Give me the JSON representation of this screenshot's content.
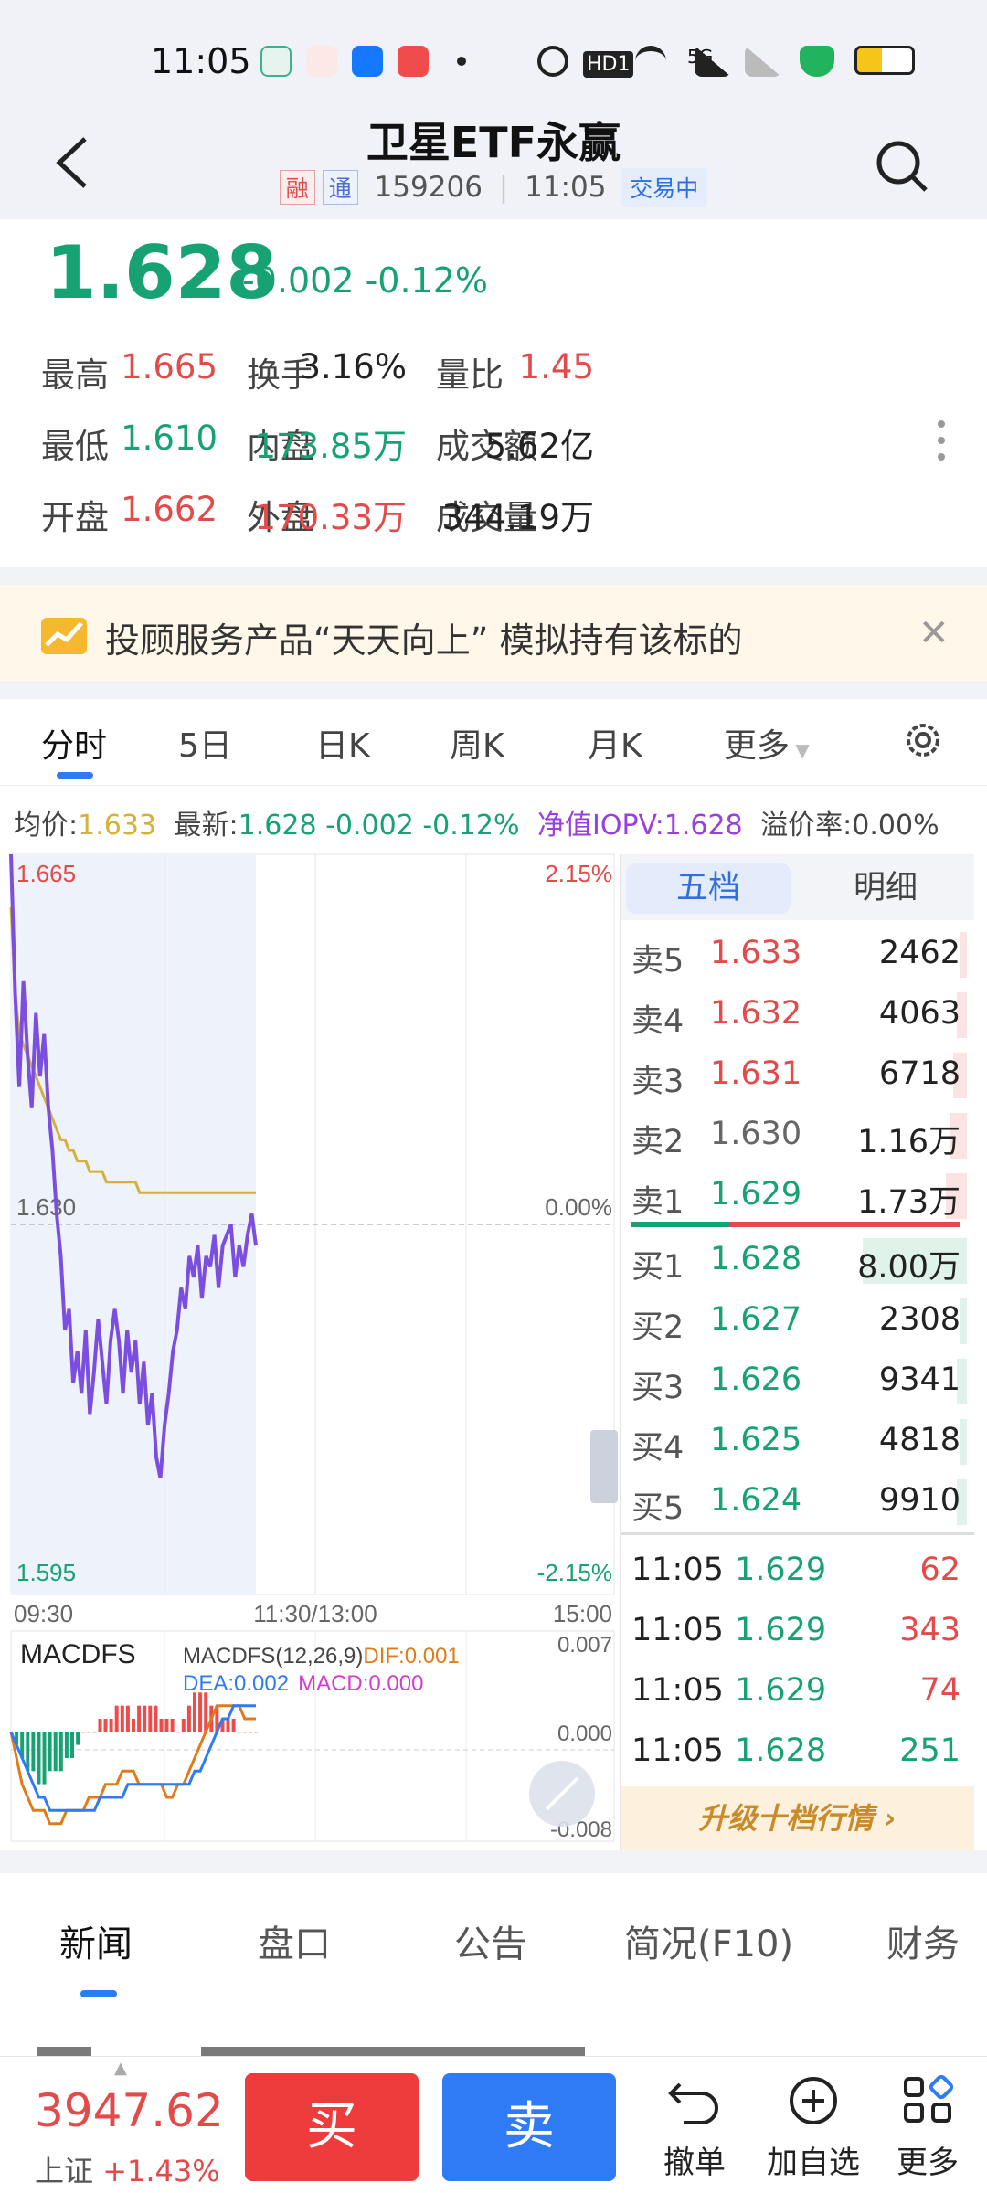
{
  "status_bar": {
    "time": "11:05",
    "network": "5G",
    "hd_badge": "HD1"
  },
  "header": {
    "title": "卫星ETF永赢",
    "tag_margin": "融",
    "tag_connect": "通",
    "code": "159206",
    "time": "11:05",
    "market_state": "交易中"
  },
  "quote": {
    "price": "1.628",
    "change": "-0.002",
    "change_pct": "-0.12%",
    "rows": [
      [
        {
          "label": "最高",
          "value": "1.665",
          "color": "#e34a4a"
        },
        {
          "label": "换手",
          "value": "3.16%",
          "color": "#222222"
        },
        {
          "label": "量比",
          "value": "1.45",
          "color": "#e34a4a"
        }
      ],
      [
        {
          "label": "最低",
          "value": "1.610",
          "color": "#17a273"
        },
        {
          "label": "内盘",
          "value": "173.85万",
          "color": "#17a273"
        },
        {
          "label": "成交额",
          "value": "5.62亿",
          "color": "#222222"
        }
      ],
      [
        {
          "label": "开盘",
          "value": "1.662",
          "color": "#e34a4a"
        },
        {
          "label": "外盘",
          "value": "170.33万",
          "color": "#e34a4a"
        },
        {
          "label": "成交量",
          "value": "344.19万",
          "color": "#222222"
        }
      ]
    ]
  },
  "banner": {
    "text": "投顾服务产品“天天向上” 模拟持有该标的"
  },
  "chart_tabs": {
    "items": [
      "分时",
      "5日",
      "日K",
      "周K",
      "月K",
      "更多"
    ]
  },
  "info_line": {
    "avg_label": "均价:",
    "avg_value": "1.633",
    "latest_label": "最新:",
    "latest_value": "1.628 -0.002 -0.12%",
    "iopv_label": "净值IOPV:",
    "iopv_value": "1.628",
    "premium_label": "溢价率:",
    "premium_value": "0.00%"
  },
  "chart_data": [
    {
      "type": "line",
      "title": "",
      "price_labels": {
        "high": "1.665",
        "mid": "1.630",
        "low": "1.595"
      },
      "pct_labels": {
        "high": "2.15%",
        "mid": "0.00%",
        "low": "-2.15%"
      },
      "time_labels": [
        "09:30",
        "11:30/13:00",
        "15:00"
      ],
      "ylim": [
        1.595,
        1.665
      ],
      "prev_close": 1.63,
      "series": [
        {
          "color": "#7b4ee0",
          "values": [
            1.665,
            1.652,
            1.643,
            1.653,
            1.646,
            1.641,
            1.65,
            1.644,
            1.648,
            1.641,
            1.637,
            1.631,
            1.627,
            1.62,
            1.622,
            1.615,
            1.618,
            1.614,
            1.62,
            1.612,
            1.616,
            1.621,
            1.617,
            1.613,
            1.619,
            1.622,
            1.619,
            1.614,
            1.62,
            1.616,
            1.619,
            1.613,
            1.617,
            1.611,
            1.614,
            1.608,
            1.606,
            1.611,
            1.614,
            1.618,
            1.62,
            1.624,
            1.622,
            1.627,
            1.625,
            1.628,
            1.623,
            1.627,
            1.626,
            1.629,
            1.624,
            1.628,
            1.629,
            1.63,
            1.625,
            1.628,
            1.626,
            1.629,
            1.631,
            1.628
          ]
        },
        {
          "color": "#d4b13a",
          "values": [
            1.66,
            1.652,
            1.648,
            1.647,
            1.646,
            1.645,
            1.644,
            1.643,
            1.642,
            1.641,
            1.64,
            1.639,
            1.638,
            1.638,
            1.637,
            1.637,
            1.636,
            1.636,
            1.636,
            1.635,
            1.635,
            1.635,
            1.635,
            1.634,
            1.634,
            1.634,
            1.634,
            1.634,
            1.634,
            1.634,
            1.634,
            1.633,
            1.633,
            1.633,
            1.633,
            1.633,
            1.633,
            1.633,
            1.633,
            1.633,
            1.633,
            1.633,
            1.633,
            1.633,
            1.633,
            1.633,
            1.633,
            1.633,
            1.633,
            1.633,
            1.633,
            1.633,
            1.633,
            1.633,
            1.633,
            1.633,
            1.633,
            1.633,
            1.633,
            1.633
          ]
        }
      ]
    },
    {
      "type": "bar",
      "title": "MACDFS",
      "legend": "MACDFS(12,26,9)",
      "dif_label": "DIF:0.001",
      "dea_label": "DEA:0.002",
      "macd_label": "MACD:0.000",
      "axis_labels": {
        "top": "0.007",
        "mid": "0.000",
        "bottom": "-0.008"
      },
      "ylim": [
        -0.008,
        0.007
      ],
      "histogram": [
        0.0,
        -0.001,
        -0.002,
        -0.003,
        -0.003,
        -0.004,
        -0.004,
        -0.003,
        -0.003,
        -0.003,
        -0.002,
        -0.002,
        -0.001,
        0.0,
        0.0,
        0.0,
        0.001,
        0.001,
        0.001,
        0.002,
        0.002,
        0.002,
        0.001,
        0.002,
        0.002,
        0.002,
        0.002,
        0.001,
        0.001,
        0.001,
        0.0,
        0.001,
        0.002,
        0.003,
        0.003,
        0.003,
        0.002,
        0.002,
        0.001,
        0.001,
        0.001,
        0.0,
        0.0,
        0.0,
        0.0
      ],
      "dif": [
        0.0,
        -0.002,
        -0.004,
        -0.005,
        -0.006,
        -0.006,
        -0.006,
        -0.007,
        -0.007,
        -0.007,
        -0.006,
        -0.006,
        -0.006,
        -0.006,
        -0.005,
        -0.005,
        -0.005,
        -0.004,
        -0.004,
        -0.004,
        -0.003,
        -0.003,
        -0.003,
        -0.004,
        -0.004,
        -0.004,
        -0.004,
        -0.004,
        -0.005,
        -0.005,
        -0.004,
        -0.004,
        -0.003,
        -0.002,
        -0.001,
        0.0,
        0.001,
        0.002,
        0.002,
        0.002,
        0.002,
        0.002,
        0.001,
        0.001,
        0.001
      ],
      "dea": [
        0.0,
        -0.001,
        -0.002,
        -0.003,
        -0.004,
        -0.005,
        -0.005,
        -0.006,
        -0.006,
        -0.006,
        -0.006,
        -0.006,
        -0.006,
        -0.006,
        -0.006,
        -0.006,
        -0.005,
        -0.005,
        -0.005,
        -0.005,
        -0.005,
        -0.004,
        -0.004,
        -0.004,
        -0.004,
        -0.004,
        -0.004,
        -0.004,
        -0.004,
        -0.004,
        -0.004,
        -0.004,
        -0.004,
        -0.003,
        -0.003,
        -0.002,
        -0.001,
        0.0,
        0.001,
        0.001,
        0.002,
        0.002,
        0.002,
        0.002,
        0.002
      ]
    }
  ],
  "order_book": {
    "tab_active": "五档",
    "tab_other": "明细",
    "asks": [
      {
        "label": "卖5",
        "price": "1.633",
        "vol": "2462",
        "color": "#e34a4a",
        "fill": 0.02
      },
      {
        "label": "卖4",
        "price": "1.632",
        "vol": "4063",
        "color": "#e34a4a",
        "fill": 0.03
      },
      {
        "label": "卖3",
        "price": "1.631",
        "vol": "6718",
        "color": "#e34a4a",
        "fill": 0.04
      },
      {
        "label": "卖2",
        "price": "1.630",
        "vol": "1.16万",
        "color": "#666666",
        "fill": 0.05
      },
      {
        "label": "卖1",
        "price": "1.629",
        "vol": "1.73万",
        "color": "#17a273",
        "fill": 0.06
      }
    ],
    "bids": [
      {
        "label": "买1",
        "price": "1.628",
        "vol": "8.00万",
        "color": "#17a273",
        "fill": 0.3
      },
      {
        "label": "买2",
        "price": "1.627",
        "vol": "2308",
        "color": "#17a273",
        "fill": 0.02
      },
      {
        "label": "买3",
        "price": "1.626",
        "vol": "9341",
        "color": "#17a273",
        "fill": 0.03
      },
      {
        "label": "买4",
        "price": "1.625",
        "vol": "4818",
        "color": "#17a273",
        "fill": 0.02
      },
      {
        "label": "买5",
        "price": "1.624",
        "vol": "9910",
        "color": "#17a273",
        "fill": 0.03
      }
    ],
    "ticks": [
      {
        "time": "11:05",
        "price": "1.629",
        "vol": "62",
        "vol_color": "#e34a4a"
      },
      {
        "time": "11:05",
        "price": "1.629",
        "vol": "343",
        "vol_color": "#e34a4a"
      },
      {
        "time": "11:05",
        "price": "1.629",
        "vol": "74",
        "vol_color": "#e34a4a"
      },
      {
        "time": "11:05",
        "price": "1.628",
        "vol": "251",
        "vol_color": "#17a273"
      }
    ],
    "upgrade_label": "升级十档行情"
  },
  "bottom_tabs": {
    "items": [
      "新闻",
      "盘口",
      "公告",
      "简况(F10)",
      "财务"
    ]
  },
  "action_bar": {
    "index_value": "3947.62",
    "index_name": "上证",
    "index_change": "+1.43%",
    "buy_label": "买",
    "sell_label": "卖",
    "cancel_label": "撤单",
    "watch_label": "加自选",
    "more_label": "更多"
  },
  "colors": {
    "up": "#e34a4a",
    "down": "#17a273",
    "accent": "#2f7bf5",
    "avg_line": "#d4b13a",
    "price_line": "#7b4ee0"
  }
}
